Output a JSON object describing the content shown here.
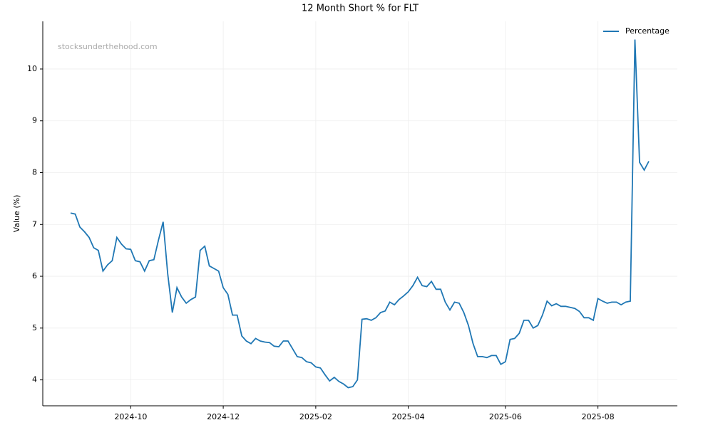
{
  "chart_data": {
    "type": "line",
    "title": "12 Month Short % for FLT",
    "ylabel": "Value (%)",
    "watermark": "stocksunderthehood.com",
    "legend": "upper right",
    "grid": true,
    "categories": [
      null,
      null,
      null,
      null,
      null,
      null,
      null,
      null,
      null,
      null,
      null,
      null,
      null,
      "2024-10",
      null,
      null,
      null,
      null,
      null,
      null,
      null,
      null,
      null,
      null,
      null,
      null,
      null,
      null,
      null,
      null,
      null,
      null,
      null,
      "2024-12",
      null,
      null,
      null,
      null,
      null,
      null,
      null,
      null,
      null,
      null,
      null,
      null,
      null,
      null,
      null,
      null,
      null,
      null,
      null,
      "2025-02",
      null,
      null,
      null,
      null,
      null,
      null,
      null,
      null,
      null,
      null,
      null,
      null,
      null,
      null,
      null,
      null,
      null,
      null,
      null,
      "2025-04",
      null,
      null,
      null,
      null,
      null,
      null,
      null,
      null,
      null,
      null,
      null,
      null,
      null,
      null,
      null,
      null,
      null,
      null,
      null,
      null,
      "2025-06",
      null,
      null,
      null,
      null,
      null,
      null,
      null,
      null,
      null,
      null,
      null,
      null,
      null,
      null,
      null,
      null,
      null,
      null,
      null,
      "2025-08",
      null,
      null,
      null,
      null,
      null,
      null,
      null,
      null,
      null,
      null,
      null
    ],
    "series": [
      {
        "name": "Percentage",
        "color": "#1f77b4",
        "values": [
          7.22,
          7.2,
          6.95,
          6.86,
          6.75,
          6.55,
          6.5,
          6.1,
          6.22,
          6.3,
          6.75,
          6.62,
          6.53,
          6.52,
          6.3,
          6.28,
          6.1,
          6.3,
          6.32,
          6.7,
          7.05,
          6.05,
          5.3,
          5.78,
          5.6,
          5.48,
          5.55,
          5.6,
          6.5,
          6.58,
          6.2,
          6.15,
          6.1,
          5.78,
          5.65,
          5.25,
          5.25,
          4.85,
          4.75,
          4.7,
          4.8,
          4.75,
          4.73,
          4.72,
          4.65,
          4.64,
          4.75,
          4.75,
          4.6,
          4.45,
          4.43,
          4.35,
          4.33,
          4.25,
          4.23,
          4.1,
          3.98,
          4.05,
          3.97,
          3.92,
          3.85,
          3.87,
          4.0,
          5.17,
          5.18,
          5.15,
          5.2,
          5.3,
          5.33,
          5.5,
          5.45,
          5.55,
          5.62,
          5.7,
          5.82,
          5.98,
          5.82,
          5.8,
          5.9,
          5.75,
          5.75,
          5.5,
          5.35,
          5.5,
          5.48,
          5.3,
          5.05,
          4.7,
          4.45,
          4.45,
          4.43,
          4.47,
          4.47,
          4.3,
          4.35,
          4.78,
          4.8,
          4.9,
          5.15,
          5.15,
          5.0,
          5.05,
          5.25,
          5.52,
          5.43,
          5.47,
          5.42,
          5.42,
          5.4,
          5.38,
          5.32,
          5.2,
          5.2,
          5.15,
          5.57,
          5.52,
          5.48,
          5.5,
          5.5,
          5.45,
          5.5,
          5.52,
          10.57,
          8.2,
          8.05,
          8.22
        ]
      }
    ],
    "ylim": [
      3.5,
      10.92
    ],
    "yticks": [
      4,
      5,
      6,
      7,
      8,
      9,
      10
    ]
  }
}
